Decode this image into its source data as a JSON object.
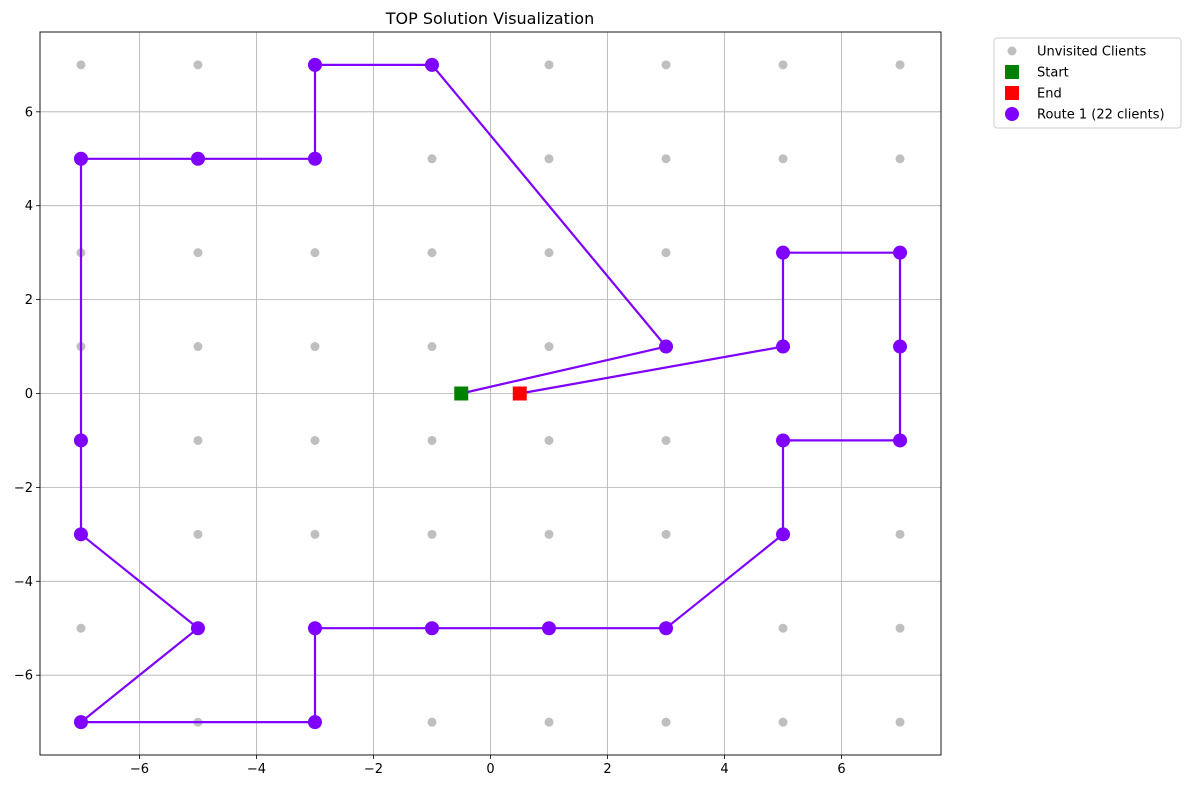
{
  "chart_data": {
    "type": "scatter",
    "title": "TOP Solution Visualization",
    "xlabel": "",
    "ylabel": "",
    "xlim": [
      -7.7,
      7.7
    ],
    "ylim": [
      -7.7,
      7.7
    ],
    "x_ticks": [
      -6,
      -4,
      -2,
      0,
      2,
      4,
      6
    ],
    "y_ticks": [
      -6,
      -4,
      -2,
      0,
      2,
      4,
      6
    ],
    "x_tick_labels": [
      "−6",
      "−4",
      "−2",
      "0",
      "2",
      "4",
      "6"
    ],
    "y_tick_labels": [
      "−6",
      "−4",
      "−2",
      "0",
      "2",
      "4",
      "6"
    ],
    "grid": true,
    "legend_position": "outside-top-right",
    "legend": [
      {
        "label": "Unvisited Clients",
        "marker": "circle",
        "color": "#a9a9a9"
      },
      {
        "label": "Start",
        "marker": "square",
        "color": "#008000"
      },
      {
        "label": "End",
        "marker": "square",
        "color": "#ff0000"
      },
      {
        "label": "Route 1 (22 clients)",
        "marker": "circle",
        "color": "#7f00ff"
      }
    ],
    "series": [
      {
        "name": "Unvisited Clients",
        "color": "#a9a9a9",
        "points": [
          [
            -7,
            7
          ],
          [
            -5,
            7
          ],
          [
            1,
            7
          ],
          [
            3,
            7
          ],
          [
            5,
            7
          ],
          [
            7,
            7
          ],
          [
            -1,
            5
          ],
          [
            1,
            5
          ],
          [
            3,
            5
          ],
          [
            5,
            5
          ],
          [
            7,
            5
          ],
          [
            -7,
            3
          ],
          [
            -5,
            3
          ],
          [
            -3,
            3
          ],
          [
            -1,
            3
          ],
          [
            1,
            3
          ],
          [
            3,
            3
          ],
          [
            -7,
            1
          ],
          [
            -5,
            1
          ],
          [
            -3,
            1
          ],
          [
            -1,
            1
          ],
          [
            1,
            1
          ],
          [
            -5,
            -1
          ],
          [
            -3,
            -1
          ],
          [
            -1,
            -1
          ],
          [
            1,
            -1
          ],
          [
            3,
            -1
          ],
          [
            -5,
            -3
          ],
          [
            -3,
            -3
          ],
          [
            -1,
            -3
          ],
          [
            1,
            -3
          ],
          [
            3,
            -3
          ],
          [
            7,
            -3
          ],
          [
            -7,
            -5
          ],
          [
            5,
            -5
          ],
          [
            7,
            -5
          ],
          [
            -5,
            -7
          ],
          [
            -1,
            -7
          ],
          [
            1,
            -7
          ],
          [
            3,
            -7
          ],
          [
            5,
            -7
          ],
          [
            7,
            -7
          ]
        ]
      },
      {
        "name": "Start",
        "color": "#008000",
        "points": [
          [
            -0.5,
            0
          ]
        ]
      },
      {
        "name": "End",
        "color": "#ff0000",
        "points": [
          [
            0.5,
            0
          ]
        ]
      },
      {
        "name": "Route 1 (22 clients)",
        "color": "#7f00ff",
        "path": [
          [
            -0.5,
            0
          ],
          [
            3,
            1
          ],
          [
            -1,
            7
          ],
          [
            -3,
            7
          ],
          [
            -3,
            5
          ],
          [
            -5,
            5
          ],
          [
            -7,
            5
          ],
          [
            -7,
            -1
          ],
          [
            -7,
            -3
          ],
          [
            -5,
            -5
          ],
          [
            -7,
            -7
          ],
          [
            -3,
            -7
          ],
          [
            -3,
            -5
          ],
          [
            -1,
            -5
          ],
          [
            1,
            -5
          ],
          [
            3,
            -5
          ],
          [
            5,
            -3
          ],
          [
            5,
            -1
          ],
          [
            7,
            -1
          ],
          [
            7,
            1
          ],
          [
            7,
            3
          ],
          [
            5,
            3
          ],
          [
            5,
            1
          ],
          [
            0.5,
            0
          ]
        ],
        "clients": [
          [
            3,
            1
          ],
          [
            -1,
            7
          ],
          [
            -3,
            7
          ],
          [
            -3,
            5
          ],
          [
            -5,
            5
          ],
          [
            -7,
            5
          ],
          [
            -7,
            -1
          ],
          [
            -7,
            -3
          ],
          [
            -5,
            -5
          ],
          [
            -7,
            -7
          ],
          [
            -3,
            -7
          ],
          [
            -3,
            -5
          ],
          [
            -1,
            -5
          ],
          [
            1,
            -5
          ],
          [
            3,
            -5
          ],
          [
            5,
            -3
          ],
          [
            5,
            -1
          ],
          [
            7,
            -1
          ],
          [
            7,
            1
          ],
          [
            7,
            3
          ],
          [
            5,
            3
          ],
          [
            5,
            1
          ]
        ]
      }
    ]
  }
}
